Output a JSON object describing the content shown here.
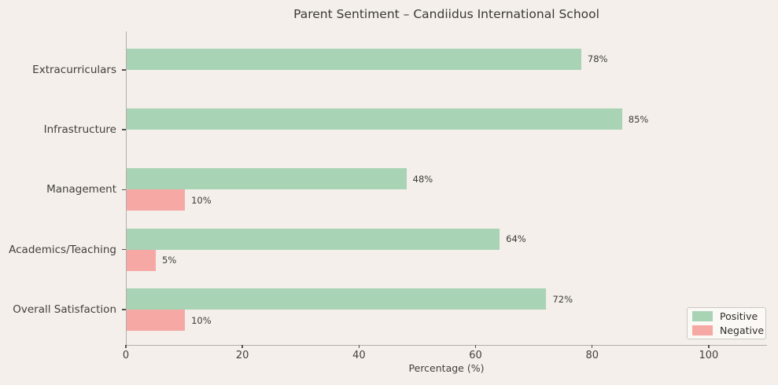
{
  "chart_data": {
    "type": "bar",
    "orientation": "horizontal",
    "title": "Parent Sentiment – Candiidus International School",
    "xlabel": "Percentage (%)",
    "categories": [
      "Extracurriculars",
      "Infrastructure",
      "Management",
      "Academics/Teaching",
      "Overall Satisfaction"
    ],
    "series": [
      {
        "name": "Positive",
        "color": "#a8d3b5",
        "values": [
          78,
          85,
          48,
          64,
          72
        ]
      },
      {
        "name": "Negative",
        "color": "#f6a9a4",
        "values": [
          0,
          0,
          10,
          5,
          10
        ]
      }
    ],
    "data_label_format": "{value}%",
    "xticks": [
      0,
      20,
      40,
      60,
      80,
      100
    ],
    "xlim": [
      0,
      110
    ],
    "grid": false,
    "legend_position": "lower right"
  },
  "colors": {
    "background": "#f4efea",
    "positive": "#a8d3b5",
    "negative": "#f6a9a4",
    "spine": "#b2aea8",
    "text": "#3d3b38"
  }
}
